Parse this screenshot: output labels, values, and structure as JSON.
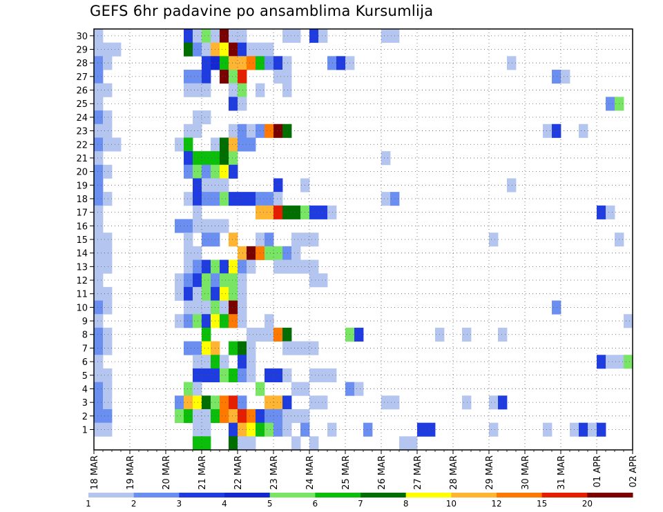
{
  "chart_data": {
    "type": "heatmap",
    "title": "GEFS 6hr padavine po ansamblima Kursumlija",
    "xlabel": "",
    "ylabel": "",
    "x_tick_labels": [
      "18 MAR",
      "19 MAR",
      "20 MAR",
      "21 MAR",
      "22 MAR",
      "23 MAR",
      "24 MAR",
      "25 MAR",
      "26 MAR",
      "27 MAR",
      "28 MAR",
      "29 MAR",
      "30 MAR",
      "31 MAR",
      "01 APR",
      "02 APR"
    ],
    "x_range_steps": [
      0,
      60
    ],
    "y_tick_labels": [
      1,
      2,
      3,
      4,
      5,
      6,
      7,
      8,
      9,
      10,
      11,
      12,
      13,
      14,
      15,
      16,
      17,
      18,
      19,
      20,
      21,
      22,
      23,
      24,
      25,
      26,
      27,
      28,
      29,
      30
    ],
    "y_range": [
      0,
      30
    ],
    "grid": true,
    "colorbar": {
      "position": "bottom",
      "labels": [
        "1",
        "2",
        "3",
        "4",
        "5",
        "6",
        "7",
        "8",
        "10",
        "12",
        "15",
        "20"
      ],
      "colors": [
        "#b4c6f0",
        "#6b8ff0",
        "#1e3ce0",
        "#1428d2",
        "#78e664",
        "#0abe0a",
        "#006e00",
        "#ffff00",
        "#ffb432",
        "#ff7800",
        "#e61e00",
        "#7a0000"
      ]
    },
    "note_values": "cells are [time_step, member, color_level]; time_step 0 = 18 MAR 00z, 4 steps per day",
    "cells": [
      [
        0,
        30,
        1
      ],
      [
        0,
        29,
        1
      ],
      [
        1,
        29,
        1
      ],
      [
        2,
        29,
        1
      ],
      [
        0,
        28,
        2
      ],
      [
        1,
        28,
        1
      ],
      [
        0,
        27,
        2
      ],
      [
        0,
        26,
        1
      ],
      [
        1,
        26,
        1
      ],
      [
        0,
        25,
        1
      ],
      [
        0,
        24,
        2
      ],
      [
        1,
        24,
        1
      ],
      [
        0,
        23,
        1
      ],
      [
        1,
        23,
        1
      ],
      [
        0,
        22,
        2
      ],
      [
        1,
        22,
        1
      ],
      [
        2,
        22,
        1
      ],
      [
        0,
        21,
        1
      ],
      [
        0,
        20,
        2
      ],
      [
        1,
        20,
        1
      ],
      [
        0,
        19,
        2
      ],
      [
        0,
        18,
        2
      ],
      [
        1,
        18,
        1
      ],
      [
        0,
        17,
        1
      ],
      [
        0,
        16,
        1
      ],
      [
        0,
        15,
        1
      ],
      [
        1,
        15,
        1
      ],
      [
        0,
        14,
        1
      ],
      [
        1,
        14,
        1
      ],
      [
        0,
        13,
        1
      ],
      [
        1,
        13,
        1
      ],
      [
        0,
        12,
        1
      ],
      [
        0,
        11,
        1
      ],
      [
        1,
        11,
        1
      ],
      [
        0,
        10,
        2
      ],
      [
        1,
        10,
        1
      ],
      [
        0,
        9,
        1
      ],
      [
        0,
        8,
        2
      ],
      [
        1,
        8,
        1
      ],
      [
        0,
        7,
        2
      ],
      [
        1,
        7,
        1
      ],
      [
        0,
        6,
        1
      ],
      [
        0,
        5,
        1
      ],
      [
        1,
        5,
        1
      ],
      [
        0,
        4,
        2
      ],
      [
        1,
        4,
        1
      ],
      [
        0,
        3,
        2
      ],
      [
        1,
        3,
        1
      ],
      [
        0,
        2,
        2
      ],
      [
        1,
        2,
        2
      ],
      [
        0,
        1,
        1
      ],
      [
        1,
        1,
        1
      ],
      [
        10,
        30,
        3
      ],
      [
        11,
        30,
        1
      ],
      [
        12,
        30,
        5
      ],
      [
        13,
        30,
        1
      ],
      [
        14,
        30,
        12
      ],
      [
        15,
        30,
        1
      ],
      [
        16,
        30,
        1
      ],
      [
        21,
        30,
        1
      ],
      [
        22,
        30,
        1
      ],
      [
        24,
        30,
        3
      ],
      [
        25,
        30,
        1
      ],
      [
        32,
        30,
        1
      ],
      [
        33,
        30,
        1
      ],
      [
        10,
        29,
        7
      ],
      [
        11,
        29,
        2
      ],
      [
        12,
        29,
        1
      ],
      [
        13,
        29,
        9
      ],
      [
        14,
        29,
        8
      ],
      [
        15,
        29,
        12
      ],
      [
        16,
        29,
        3
      ],
      [
        17,
        29,
        1
      ],
      [
        18,
        29,
        1
      ],
      [
        19,
        29,
        1
      ],
      [
        12,
        28,
        3
      ],
      [
        13,
        28,
        4
      ],
      [
        14,
        28,
        6
      ],
      [
        15,
        28,
        9
      ],
      [
        16,
        28,
        9
      ],
      [
        17,
        28,
        10
      ],
      [
        18,
        28,
        6
      ],
      [
        19,
        28,
        2
      ],
      [
        20,
        28,
        3
      ],
      [
        21,
        28,
        1
      ],
      [
        26,
        28,
        2
      ],
      [
        27,
        28,
        3
      ],
      [
        28,
        28,
        1
      ],
      [
        46,
        28,
        1
      ],
      [
        10,
        27,
        2
      ],
      [
        11,
        27,
        2
      ],
      [
        12,
        27,
        3
      ],
      [
        14,
        27,
        12
      ],
      [
        15,
        27,
        5
      ],
      [
        16,
        27,
        11
      ],
      [
        20,
        27,
        1
      ],
      [
        21,
        27,
        1
      ],
      [
        51,
        27,
        2
      ],
      [
        52,
        27,
        1
      ],
      [
        10,
        26,
        1
      ],
      [
        11,
        26,
        1
      ],
      [
        12,
        26,
        1
      ],
      [
        15,
        26,
        1
      ],
      [
        16,
        26,
        5
      ],
      [
        18,
        26,
        1
      ],
      [
        21,
        26,
        1
      ],
      [
        15,
        25,
        3
      ],
      [
        16,
        25,
        1
      ],
      [
        57,
        25,
        2
      ],
      [
        58,
        25,
        5
      ],
      [
        11,
        24,
        1
      ],
      [
        12,
        24,
        1
      ],
      [
        10,
        23,
        1
      ],
      [
        11,
        23,
        1
      ],
      [
        15,
        23,
        1
      ],
      [
        16,
        23,
        2
      ],
      [
        17,
        23,
        1
      ],
      [
        18,
        23,
        2
      ],
      [
        19,
        23,
        10
      ],
      [
        20,
        23,
        12
      ],
      [
        21,
        23,
        7
      ],
      [
        50,
        23,
        1
      ],
      [
        51,
        23,
        3
      ],
      [
        54,
        23,
        1
      ],
      [
        9,
        22,
        1
      ],
      [
        10,
        22,
        6
      ],
      [
        13,
        22,
        1
      ],
      [
        14,
        22,
        7
      ],
      [
        15,
        22,
        9
      ],
      [
        16,
        22,
        2
      ],
      [
        17,
        22,
        2
      ],
      [
        10,
        21,
        3
      ],
      [
        11,
        21,
        6
      ],
      [
        12,
        21,
        6
      ],
      [
        13,
        21,
        6
      ],
      [
        14,
        21,
        7
      ],
      [
        15,
        21,
        5
      ],
      [
        32,
        21,
        1
      ],
      [
        10,
        20,
        2
      ],
      [
        11,
        20,
        5
      ],
      [
        12,
        20,
        2
      ],
      [
        13,
        20,
        5
      ],
      [
        14,
        20,
        8
      ],
      [
        15,
        20,
        3
      ],
      [
        11,
        19,
        3
      ],
      [
        12,
        19,
        1
      ],
      [
        13,
        19,
        1
      ],
      [
        14,
        19,
        1
      ],
      [
        20,
        19,
        3
      ],
      [
        23,
        19,
        1
      ],
      [
        46,
        19,
        1
      ],
      [
        10,
        18,
        1
      ],
      [
        11,
        18,
        3
      ],
      [
        12,
        18,
        2
      ],
      [
        13,
        18,
        2
      ],
      [
        14,
        18,
        5
      ],
      [
        15,
        18,
        3
      ],
      [
        16,
        18,
        3
      ],
      [
        17,
        18,
        3
      ],
      [
        18,
        18,
        2
      ],
      [
        19,
        18,
        2
      ],
      [
        20,
        18,
        1
      ],
      [
        32,
        18,
        1
      ],
      [
        33,
        18,
        2
      ],
      [
        11,
        17,
        1
      ],
      [
        18,
        17,
        9
      ],
      [
        19,
        17,
        9
      ],
      [
        20,
        17,
        11
      ],
      [
        21,
        17,
        7
      ],
      [
        22,
        17,
        7
      ],
      [
        23,
        17,
        5
      ],
      [
        24,
        17,
        3
      ],
      [
        25,
        17,
        3
      ],
      [
        26,
        17,
        1
      ],
      [
        56,
        17,
        3
      ],
      [
        57,
        17,
        1
      ],
      [
        9,
        16,
        2
      ],
      [
        10,
        16,
        2
      ],
      [
        11,
        16,
        1
      ],
      [
        12,
        16,
        1
      ],
      [
        13,
        16,
        1
      ],
      [
        14,
        16,
        1
      ],
      [
        10,
        15,
        1
      ],
      [
        12,
        15,
        2
      ],
      [
        13,
        15,
        2
      ],
      [
        15,
        15,
        9
      ],
      [
        18,
        15,
        1
      ],
      [
        19,
        15,
        2
      ],
      [
        22,
        15,
        1
      ],
      [
        23,
        15,
        1
      ],
      [
        24,
        15,
        1
      ],
      [
        44,
        15,
        1
      ],
      [
        58,
        15,
        1
      ],
      [
        10,
        14,
        1
      ],
      [
        11,
        14,
        1
      ],
      [
        16,
        14,
        9
      ],
      [
        17,
        14,
        12
      ],
      [
        18,
        14,
        10
      ],
      [
        19,
        14,
        5
      ],
      [
        20,
        14,
        5
      ],
      [
        21,
        14,
        2
      ],
      [
        22,
        14,
        1
      ],
      [
        10,
        13,
        1
      ],
      [
        11,
        13,
        2
      ],
      [
        12,
        13,
        3
      ],
      [
        13,
        13,
        5
      ],
      [
        14,
        13,
        3
      ],
      [
        15,
        13,
        8
      ],
      [
        16,
        13,
        2
      ],
      [
        17,
        13,
        1
      ],
      [
        20,
        13,
        1
      ],
      [
        21,
        13,
        1
      ],
      [
        22,
        13,
        1
      ],
      [
        23,
        13,
        1
      ],
      [
        24,
        13,
        1
      ],
      [
        9,
        12,
        1
      ],
      [
        10,
        12,
        2
      ],
      [
        11,
        12,
        3
      ],
      [
        12,
        12,
        5
      ],
      [
        13,
        12,
        2
      ],
      [
        14,
        12,
        5
      ],
      [
        15,
        12,
        5
      ],
      [
        16,
        12,
        1
      ],
      [
        24,
        12,
        1
      ],
      [
        25,
        12,
        1
      ],
      [
        9,
        11,
        1
      ],
      [
        10,
        11,
        3
      ],
      [
        11,
        11,
        1
      ],
      [
        12,
        11,
        5
      ],
      [
        13,
        11,
        3
      ],
      [
        14,
        11,
        8
      ],
      [
        15,
        11,
        5
      ],
      [
        16,
        11,
        1
      ],
      [
        10,
        10,
        1
      ],
      [
        11,
        10,
        1
      ],
      [
        12,
        10,
        1
      ],
      [
        13,
        10,
        5
      ],
      [
        14,
        10,
        1
      ],
      [
        15,
        10,
        12
      ],
      [
        16,
        10,
        1
      ],
      [
        51,
        10,
        2
      ],
      [
        9,
        9,
        1
      ],
      [
        10,
        9,
        2
      ],
      [
        11,
        9,
        5
      ],
      [
        12,
        9,
        3
      ],
      [
        13,
        9,
        8
      ],
      [
        14,
        9,
        6
      ],
      [
        15,
        9,
        10
      ],
      [
        16,
        9,
        1
      ],
      [
        19,
        9,
        1
      ],
      [
        59,
        9,
        1
      ],
      [
        12,
        8,
        6
      ],
      [
        17,
        8,
        1
      ],
      [
        18,
        8,
        1
      ],
      [
        19,
        8,
        1
      ],
      [
        20,
        8,
        10
      ],
      [
        21,
        8,
        7
      ],
      [
        28,
        8,
        5
      ],
      [
        29,
        8,
        3
      ],
      [
        38,
        8,
        1
      ],
      [
        41,
        8,
        1
      ],
      [
        45,
        8,
        1
      ],
      [
        10,
        7,
        2
      ],
      [
        11,
        7,
        2
      ],
      [
        12,
        7,
        8
      ],
      [
        13,
        7,
        9
      ],
      [
        15,
        7,
        6
      ],
      [
        16,
        7,
        7
      ],
      [
        17,
        7,
        1
      ],
      [
        21,
        7,
        1
      ],
      [
        22,
        7,
        1
      ],
      [
        23,
        7,
        1
      ],
      [
        24,
        7,
        1
      ],
      [
        11,
        6,
        1
      ],
      [
        12,
        6,
        1
      ],
      [
        13,
        6,
        6
      ],
      [
        14,
        6,
        1
      ],
      [
        16,
        6,
        3
      ],
      [
        17,
        6,
        1
      ],
      [
        56,
        6,
        3
      ],
      [
        57,
        6,
        1
      ],
      [
        58,
        6,
        1
      ],
      [
        59,
        6,
        5
      ],
      [
        11,
        5,
        3
      ],
      [
        12,
        5,
        3
      ],
      [
        13,
        5,
        3
      ],
      [
        14,
        5,
        5
      ],
      [
        15,
        5,
        6
      ],
      [
        16,
        5,
        2
      ],
      [
        17,
        5,
        1
      ],
      [
        19,
        5,
        3
      ],
      [
        20,
        5,
        3
      ],
      [
        21,
        5,
        1
      ],
      [
        24,
        5,
        1
      ],
      [
        25,
        5,
        1
      ],
      [
        26,
        5,
        1
      ],
      [
        10,
        4,
        5
      ],
      [
        11,
        4,
        1
      ],
      [
        18,
        4,
        5
      ],
      [
        22,
        4,
        1
      ],
      [
        23,
        4,
        1
      ],
      [
        28,
        4,
        2
      ],
      [
        29,
        4,
        1
      ],
      [
        9,
        3,
        2
      ],
      [
        10,
        3,
        9
      ],
      [
        11,
        3,
        8
      ],
      [
        12,
        3,
        7
      ],
      [
        13,
        3,
        5
      ],
      [
        14,
        3,
        10
      ],
      [
        15,
        3,
        11
      ],
      [
        16,
        3,
        2
      ],
      [
        19,
        3,
        9
      ],
      [
        20,
        3,
        9
      ],
      [
        21,
        3,
        3
      ],
      [
        24,
        3,
        1
      ],
      [
        25,
        3,
        1
      ],
      [
        32,
        3,
        1
      ],
      [
        33,
        3,
        1
      ],
      [
        41,
        3,
        1
      ],
      [
        44,
        3,
        1
      ],
      [
        45,
        3,
        3
      ],
      [
        9,
        2,
        5
      ],
      [
        10,
        2,
        6
      ],
      [
        11,
        2,
        1
      ],
      [
        12,
        2,
        1
      ],
      [
        13,
        2,
        6
      ],
      [
        14,
        2,
        10
      ],
      [
        15,
        2,
        9
      ],
      [
        16,
        2,
        11
      ],
      [
        17,
        2,
        10
      ],
      [
        18,
        2,
        3
      ],
      [
        19,
        2,
        2
      ],
      [
        20,
        2,
        2
      ],
      [
        21,
        2,
        1
      ],
      [
        22,
        2,
        1
      ],
      [
        23,
        2,
        1
      ],
      [
        11,
        1,
        1
      ],
      [
        12,
        1,
        1
      ],
      [
        15,
        1,
        3
      ],
      [
        16,
        1,
        9
      ],
      [
        17,
        1,
        8
      ],
      [
        18,
        1,
        6
      ],
      [
        19,
        1,
        5
      ],
      [
        20,
        1,
        2
      ],
      [
        21,
        1,
        1
      ],
      [
        23,
        1,
        2
      ],
      [
        26,
        1,
        1
      ],
      [
        30,
        1,
        2
      ],
      [
        36,
        1,
        3
      ],
      [
        37,
        1,
        3
      ],
      [
        44,
        1,
        1
      ],
      [
        50,
        1,
        1
      ],
      [
        53,
        1,
        1
      ],
      [
        54,
        1,
        3
      ],
      [
        55,
        1,
        1
      ],
      [
        56,
        1,
        3
      ],
      [
        11,
        0,
        6
      ],
      [
        12,
        0,
        6
      ],
      [
        15,
        0,
        7
      ],
      [
        16,
        0,
        1
      ],
      [
        17,
        0,
        1
      ],
      [
        22,
        0,
        1
      ],
      [
        24,
        0,
        1
      ],
      [
        34,
        0,
        1
      ],
      [
        35,
        0,
        1
      ]
    ]
  }
}
